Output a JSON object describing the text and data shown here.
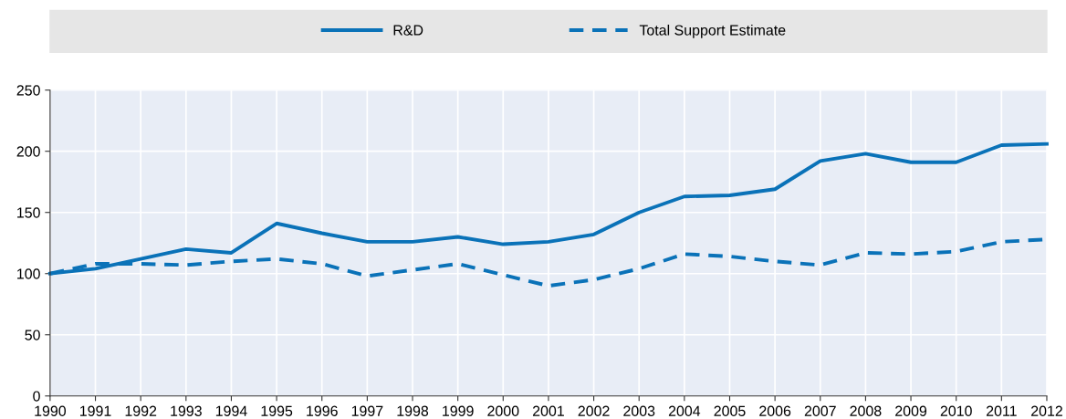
{
  "chart_data": {
    "type": "line",
    "x": [
      1990,
      1991,
      1992,
      1993,
      1994,
      1995,
      1996,
      1997,
      1998,
      1999,
      2000,
      2001,
      2002,
      2003,
      2004,
      2005,
      2006,
      2007,
      2008,
      2009,
      2010,
      2011,
      2012
    ],
    "series": [
      {
        "name": "R&D",
        "color": "#0a72b8",
        "line_style": "solid",
        "values": [
          100,
          104,
          112,
          120,
          117,
          141,
          133,
          126,
          126,
          130,
          124,
          126,
          132,
          150,
          163,
          164,
          169,
          192,
          198,
          191,
          191,
          205,
          206
        ]
      },
      {
        "name": "Total Support Estimate",
        "color": "#0a72b8",
        "line_style": "dashed",
        "values": [
          100,
          108,
          108,
          107,
          110,
          112,
          108,
          98,
          103,
          108,
          99,
          90,
          95,
          104,
          116,
          114,
          110,
          107,
          117,
          116,
          118,
          126,
          128
        ]
      }
    ],
    "xlim": [
      1990,
      2012
    ],
    "xticks": [
      1990,
      1991,
      1992,
      1993,
      1994,
      1995,
      1996,
      1997,
      1998,
      1999,
      2000,
      2001,
      2002,
      2003,
      2004,
      2005,
      2006,
      2007,
      2008,
      2009,
      2010,
      2011,
      2012
    ],
    "ylim": [
      0,
      250
    ],
    "yticks": [
      0,
      50,
      100,
      150,
      200,
      250
    ],
    "grid": true,
    "legend": "top",
    "marker": "none"
  }
}
